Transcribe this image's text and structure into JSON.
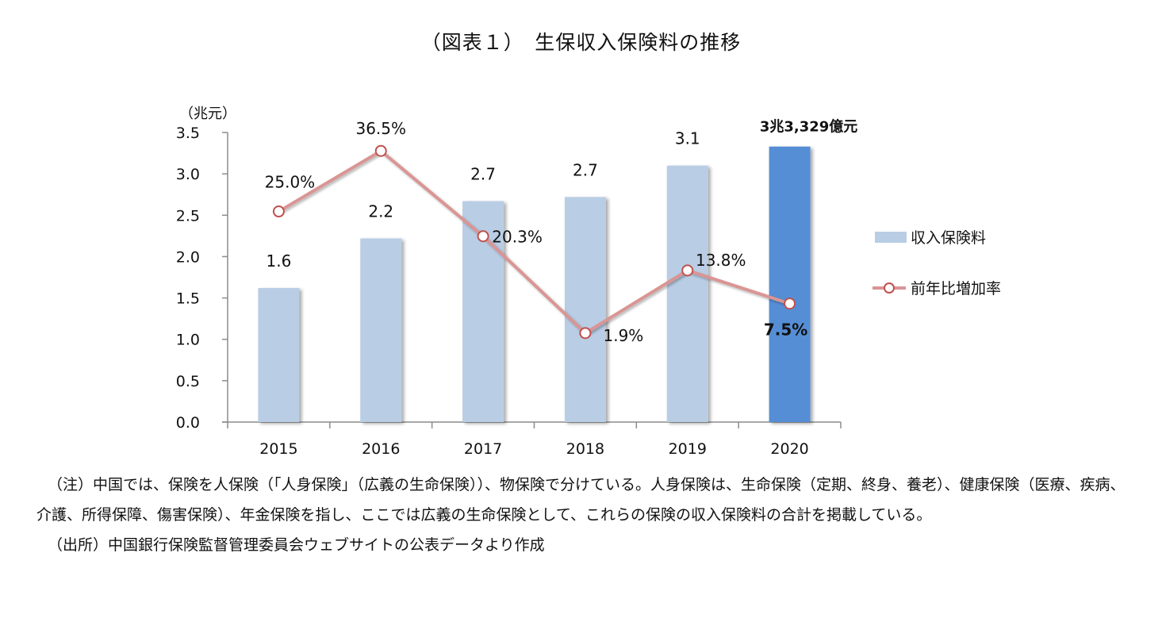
{
  "title": "（図表１）　生保収入保険料の推移",
  "chart_data": {
    "type": "bar",
    "title": "（図表１）　生保収入保険料の推移",
    "categories": [
      "2015",
      "2016",
      "2017",
      "2018",
      "2019",
      "2020"
    ],
    "ylabel": "（兆元）",
    "xlabel": "",
    "ylim": [
      0,
      3.5
    ],
    "yticks": [
      "0.0",
      "0.5",
      "1.0",
      "1.5",
      "2.0",
      "2.5",
      "3.0",
      "3.5"
    ],
    "grid": false,
    "legend_position": "right",
    "series": [
      {
        "name": "収入保険料",
        "type": "bar",
        "axis": "primary",
        "values": [
          1.62,
          2.22,
          2.67,
          2.72,
          3.1,
          3.33
        ],
        "labels": [
          "1.6",
          "2.2",
          "2.7",
          "2.7",
          "3.1",
          "3兆3,329億元"
        ],
        "color": "#b9cde5",
        "highlight_color": "#558ed5",
        "highlight_index": 5
      },
      {
        "name": "前年比増加率",
        "type": "line",
        "axis": "secondary",
        "unit": "%",
        "values": [
          25.0,
          36.5,
          20.3,
          1.9,
          13.8,
          7.5
        ],
        "labels": [
          "25.0%",
          "36.5%",
          "20.3%",
          "1.9%",
          "13.8%",
          "7.5%"
        ],
        "color": "#d99594",
        "marker_edge_color": "#c0504d",
        "secondary_ylim": [
          -15,
          40
        ]
      }
    ]
  },
  "notes": {
    "note": "（注）中国では、保険を人保険（「人身保険」（広義の生命保険））、物保険で分けている。人身保険は、生命保険（定期、終身、養老）、健康保険（医療、疾病、介護、所得保障、傷害保険）、年金保険を指し、ここでは広義の生命保険として、これらの保険の収入保険料の合計を掲載している。",
    "source": "（出所）中国銀行保険監督管理委員会ウェブサイトの公表データより作成"
  }
}
